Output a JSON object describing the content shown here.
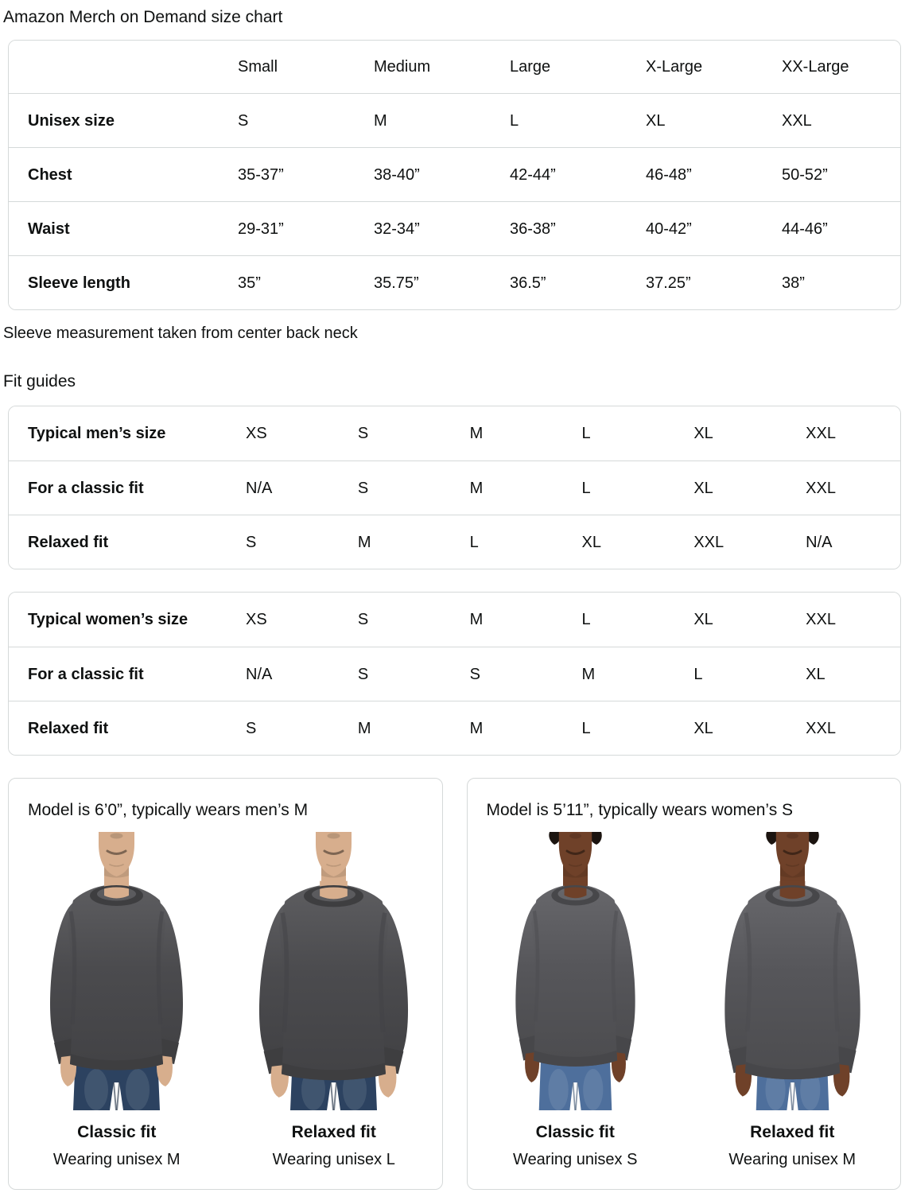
{
  "page": {
    "title": "Amazon Merch on Demand size chart",
    "note": "Sleeve measurement taken from center back neck",
    "fit_guides_heading": "Fit guides"
  },
  "size_table": {
    "columns": [
      "",
      "Small",
      "Medium",
      "Large",
      "X-Large",
      "XX-Large"
    ],
    "rows": [
      {
        "label": "Unisex size",
        "values": [
          "S",
          "M",
          "L",
          "XL",
          "XXL"
        ]
      },
      {
        "label": "Chest",
        "values": [
          "35-37”",
          "38-40”",
          "42-44”",
          "46-48”",
          "50-52”"
        ]
      },
      {
        "label": "Waist",
        "values": [
          "29-31”",
          "32-34”",
          "36-38”",
          "40-42”",
          "44-46”"
        ]
      },
      {
        "label": "Sleeve length",
        "values": [
          "35”",
          "35.75”",
          "36.5”",
          "37.25”",
          "38”"
        ]
      }
    ]
  },
  "fit_tables": [
    {
      "rows": [
        {
          "label": "Typical men’s size",
          "values": [
            "XS",
            "S",
            "M",
            "L",
            "XL",
            "XXL"
          ]
        },
        {
          "label": "For a classic fit",
          "values": [
            "N/A",
            "S",
            "M",
            "L",
            "XL",
            "XXL"
          ]
        },
        {
          "label": "Relaxed fit",
          "values": [
            "S",
            "M",
            "L",
            "XL",
            "XXL",
            "N/A"
          ]
        }
      ]
    },
    {
      "rows": [
        {
          "label": "Typical women’s size",
          "values": [
            "XS",
            "S",
            "M",
            "L",
            "XL",
            "XXL"
          ]
        },
        {
          "label": "For a classic fit",
          "values": [
            "N/A",
            "S",
            "S",
            "M",
            "L",
            "XL"
          ]
        },
        {
          "label": "Relaxed fit",
          "values": [
            "S",
            "M",
            "M",
            "L",
            "XL",
            "XXL"
          ]
        }
      ]
    }
  ],
  "model_cards": [
    {
      "title": "Model is 6’0”, typically wears men’s M",
      "figures": [
        {
          "fit_label": "Classic fit",
          "wearing": "Wearing unisex M",
          "model": "male",
          "variant": "classic"
        },
        {
          "fit_label": "Relaxed fit",
          "wearing": "Wearing unisex L",
          "model": "male",
          "variant": "relaxed"
        }
      ]
    },
    {
      "title": "Model is 5’11”, typically wears women’s S",
      "figures": [
        {
          "fit_label": "Classic fit",
          "wearing": "Wearing unisex S",
          "model": "female",
          "variant": "classic"
        },
        {
          "fit_label": "Relaxed fit",
          "wearing": "Wearing unisex M",
          "model": "female",
          "variant": "relaxed"
        }
      ]
    }
  ],
  "colors": {
    "text": "#0F1111",
    "table_border": "#D5D9D9",
    "sweatshirt_male": "#4B4B4E",
    "sweatshirt_female": "#56565A",
    "jeans_male": "#2C4260",
    "jeans_female": "#4E6F9C",
    "skin_male": "#D7AE8D",
    "skin_female": "#6F4129",
    "hair_female": "#1B1410"
  }
}
